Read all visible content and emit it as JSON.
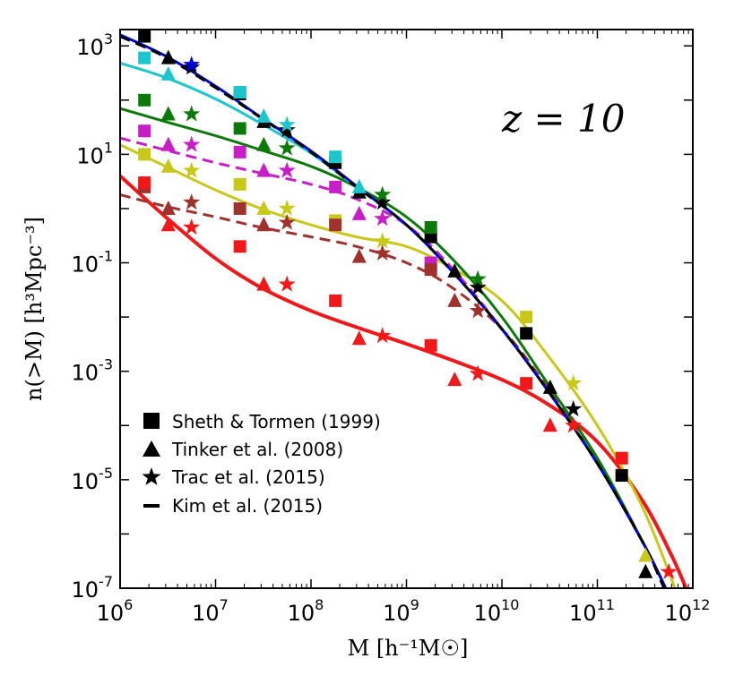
{
  "chart_data": {
    "type": "line",
    "title": "",
    "annotation": "z = 10",
    "xlabel": "M [h⁻¹M☉]",
    "ylabel": "n(>M) [h³Mpc⁻³]",
    "xscale": "log",
    "yscale": "log",
    "xlim": [
      1000000.0,
      1000000000000.0
    ],
    "ylim": [
      1e-07,
      2000
    ],
    "x_ticks": [
      {
        "value": 1000000.0,
        "base": "10",
        "exp": "6"
      },
      {
        "value": 10000000.0,
        "base": "10",
        "exp": "7"
      },
      {
        "value": 100000000.0,
        "base": "10",
        "exp": "8"
      },
      {
        "value": 1000000000.0,
        "base": "10",
        "exp": "9"
      },
      {
        "value": 10000000000.0,
        "base": "10",
        "exp": "10"
      },
      {
        "value": 100000000000.0,
        "base": "10",
        "exp": "11"
      },
      {
        "value": 1000000000000.0,
        "base": "10",
        "exp": "12"
      }
    ],
    "y_ticks": [
      {
        "value": 1e-07,
        "base": "10",
        "exp": "-7"
      },
      {
        "value": 1e-05,
        "base": "10",
        "exp": "-5"
      },
      {
        "value": 0.001,
        "base": "10",
        "exp": "-3"
      },
      {
        "value": 0.1,
        "base": "10",
        "exp": "-1"
      },
      {
        "value": 10,
        "base": "10",
        "exp": "1"
      },
      {
        "value": 1000,
        "base": "10",
        "exp": "3"
      }
    ],
    "legend": {
      "placement": "lower-left",
      "entries": [
        {
          "marker": "square",
          "label": "Sheth & Tormen (1999)"
        },
        {
          "marker": "triangle",
          "label": "Tinker et al. (2008)"
        },
        {
          "marker": "star",
          "label": "Trac et al. (2015)"
        },
        {
          "marker": "dash",
          "label": "Kim et al. (2015)"
        }
      ]
    },
    "curves": [
      {
        "name": "black",
        "color": "#000000",
        "dashed": true,
        "width": 3,
        "x": [
          1000000.0,
          3000000.0,
          10000000.0,
          30000000.0,
          100000000.0,
          300000000.0,
          1000000000.0,
          3000000000.0,
          10000000000.0,
          30000000000.0,
          100000000000.0,
          300000000000.0,
          500000000000.0
        ],
        "y": [
          1500,
          620,
          170,
          47,
          11,
          2.5,
          0.5,
          0.07,
          0.006,
          0.00045,
          2e-05,
          7e-07,
          1e-07
        ]
      },
      {
        "name": "blue",
        "color": "#0000dd",
        "dashed": false,
        "width": 3,
        "x": [
          1000000.0,
          3000000.0,
          10000000.0,
          30000000.0,
          100000000.0,
          300000000.0,
          1000000000.0,
          3000000000.0,
          10000000000.0,
          30000000000.0,
          100000000000.0,
          300000000000.0,
          520000000000.0
        ],
        "y": [
          1600,
          650,
          180,
          48,
          11.5,
          2.6,
          0.5,
          0.07,
          0.006,
          0.00045,
          2e-05,
          7e-07,
          1e-07
        ]
      },
      {
        "name": "cyan",
        "color": "#1cc6cc",
        "dashed": false,
        "width": 3,
        "x": [
          1000000.0,
          3000000.0,
          10000000.0,
          30000000.0,
          100000000.0,
          300000000.0,
          1000000000.0,
          3000000000.0,
          10000000000.0,
          30000000000.0,
          100000000000.0,
          300000000000.0,
          520000000000.0
        ],
        "y": [
          480,
          260,
          105,
          37,
          10.5,
          2.5,
          0.5,
          0.07,
          0.006,
          0.00045,
          2e-05,
          7e-07,
          1e-07
        ]
      },
      {
        "name": "green",
        "color": "#0b7a0b",
        "dashed": false,
        "width": 3,
        "x": [
          1000000.0,
          3000000.0,
          10000000.0,
          30000000.0,
          100000000.0,
          300000000.0,
          1000000000.0,
          3000000000.0,
          10000000000.0,
          30000000000.0,
          100000000000.0,
          300000000000.0,
          520000000000.0
        ],
        "y": [
          70,
          40,
          22,
          12,
          6,
          2.5,
          0.7,
          0.12,
          0.01,
          0.0006,
          2.5e-05,
          7e-07,
          1e-07
        ]
      },
      {
        "name": "magenta",
        "color": "#c81ec8",
        "dashed": true,
        "width": 3,
        "x": [
          1000000.0,
          3000000.0,
          10000000.0,
          30000000.0,
          100000000.0,
          300000000.0,
          1000000000.0,
          3000000000.0,
          10000000000.0,
          30000000000.0,
          100000000000.0,
          300000000000.0,
          520000000000.0
        ],
        "y": [
          20,
          12,
          7,
          4.5,
          2.8,
          1.5,
          0.5,
          0.08,
          0.006,
          0.00045,
          2e-05,
          7e-07,
          1e-07
        ]
      },
      {
        "name": "olive",
        "color": "#c8c81a",
        "dashed": false,
        "width": 3,
        "x": [
          1000000.0,
          3000000.0,
          10000000.0,
          30000000.0,
          100000000.0,
          300000000.0,
          1000000000.0,
          3000000000.0,
          10000000000.0,
          30000000000.0,
          100000000000.0,
          300000000000.0,
          650000000000.0
        ],
        "y": [
          15,
          6,
          2.2,
          1,
          0.5,
          0.3,
          0.2,
          0.08,
          0.02,
          0.002,
          0.0001,
          3e-06,
          1e-07
        ]
      },
      {
        "name": "brown",
        "color": "#a0322d",
        "dashed": true,
        "width": 3,
        "x": [
          1000000.0,
          3000000.0,
          10000000.0,
          30000000.0,
          100000000.0,
          300000000.0,
          1000000000.0,
          3000000000.0,
          10000000000.0,
          30000000000.0,
          100000000000.0,
          300000000000.0,
          520000000000.0
        ],
        "y": [
          1.8,
          1.1,
          0.7,
          0.45,
          0.3,
          0.2,
          0.1,
          0.035,
          0.006,
          0.0005,
          2e-05,
          7e-07,
          1e-07
        ]
      },
      {
        "name": "red",
        "color": "#f01818",
        "dashed": false,
        "width": 4,
        "x": [
          1000000.0,
          3000000.0,
          10000000.0,
          30000000.0,
          100000000.0,
          300000000.0,
          1000000000.0,
          3000000000.0,
          10000000000.0,
          30000000000.0,
          100000000000.0,
          300000000000.0,
          600000000000.0,
          850000000000.0
        ],
        "y": [
          4,
          0.7,
          0.12,
          0.035,
          0.013,
          0.0065,
          0.0032,
          0.0016,
          0.0007,
          0.00025,
          5e-05,
          4e-06,
          4e-07,
          1e-07
        ]
      }
    ],
    "points": [
      {
        "series": "black",
        "color": "#000000",
        "marker": "square",
        "x": [
          1800000.0,
          18000000.0,
          180000000.0,
          1800000000.0,
          18000000000.0,
          180000000000.0
        ],
        "y": [
          1500,
          130,
          7,
          0.3,
          0.005,
          1.2e-05
        ]
      },
      {
        "series": "black",
        "color": "#000000",
        "marker": "triangle",
        "x": [
          3200000.0,
          32000000.0,
          320000000.0,
          3200000000.0,
          32000000000.0,
          320000000000.0
        ],
        "y": [
          600,
          40,
          2,
          0.07,
          0.0005,
          2e-07
        ]
      },
      {
        "series": "black",
        "color": "#000000",
        "marker": "star",
        "x": [
          5600000.0,
          56000000.0,
          560000000.0,
          5600000000.0,
          56000000000.0
        ],
        "y": [
          400,
          28,
          1.3,
          0.035,
          0.0002
        ]
      },
      {
        "series": "blue",
        "color": "#0000dd",
        "marker": "star",
        "x": [
          5600000.0
        ],
        "y": [
          450
        ]
      },
      {
        "series": "cyan",
        "color": "#1cc6cc",
        "marker": "square",
        "x": [
          1800000.0,
          18000000.0,
          180000000.0
        ],
        "y": [
          600,
          140,
          9
        ]
      },
      {
        "series": "cyan",
        "color": "#1cc6cc",
        "marker": "triangle",
        "x": [
          3200000.0,
          32000000.0,
          320000000.0
        ],
        "y": [
          300,
          50,
          2.5
        ]
      },
      {
        "series": "cyan",
        "color": "#1cc6cc",
        "marker": "star",
        "x": [
          56000000.0
        ],
        "y": [
          35
        ]
      },
      {
        "series": "green",
        "color": "#0b7a0b",
        "marker": "square",
        "x": [
          1800000.0,
          18000000.0,
          1800000000.0
        ],
        "y": [
          100,
          30,
          0.45
        ]
      },
      {
        "series": "green",
        "color": "#0b7a0b",
        "marker": "triangle",
        "x": [
          3200000.0,
          32000000.0
        ],
        "y": [
          55,
          15
        ]
      },
      {
        "series": "green",
        "color": "#0b7a0b",
        "marker": "star",
        "x": [
          5600000.0,
          56000000.0,
          560000000.0,
          5600000000.0
        ],
        "y": [
          55,
          13,
          1.8,
          0.05
        ]
      },
      {
        "series": "magenta",
        "color": "#c81ec8",
        "marker": "square",
        "x": [
          1800000.0,
          18000000.0,
          180000000.0,
          1800000000.0
        ],
        "y": [
          27,
          11,
          2.5,
          0.1
        ]
      },
      {
        "series": "magenta",
        "color": "#c81ec8",
        "marker": "triangle",
        "x": [
          3200000.0,
          32000000.0,
          320000000.0
        ],
        "y": [
          15,
          5,
          0.8
        ]
      },
      {
        "series": "magenta",
        "color": "#c81ec8",
        "marker": "star",
        "x": [
          5600000.0,
          56000000.0,
          560000000.0
        ],
        "y": [
          15,
          5,
          0.65
        ]
      },
      {
        "series": "olive",
        "color": "#c8c81a",
        "marker": "square",
        "x": [
          1800000.0,
          18000000.0,
          180000000.0,
          18000000000.0,
          180000000000.0
        ],
        "y": [
          10,
          2.8,
          0.6,
          0.01,
          2.5e-05
        ]
      },
      {
        "series": "olive",
        "color": "#c8c81a",
        "marker": "triangle",
        "x": [
          3200000.0,
          32000000.0,
          320000000000.0
        ],
        "y": [
          6,
          1,
          4e-07
        ]
      },
      {
        "series": "olive",
        "color": "#c8c81a",
        "marker": "star",
        "x": [
          5600000.0,
          56000000.0,
          560000000.0,
          56000000000.0
        ],
        "y": [
          5,
          1,
          0.25,
          0.0006
        ]
      },
      {
        "series": "brown",
        "color": "#a0322d",
        "marker": "square",
        "x": [
          1800000.0,
          18000000.0,
          180000000.0,
          1800000000.0
        ],
        "y": [
          2.5,
          1,
          0.5,
          0.075
        ]
      },
      {
        "series": "brown",
        "color": "#a0322d",
        "marker": "triangle",
        "x": [
          3200000.0,
          32000000.0,
          320000000.0,
          3200000000.0
        ],
        "y": [
          1,
          0.5,
          0.13,
          0.02
        ]
      },
      {
        "series": "brown",
        "color": "#a0322d",
        "marker": "star",
        "x": [
          5600000.0,
          56000000.0,
          560000000.0,
          5600000000.0
        ],
        "y": [
          1.3,
          0.55,
          0.15,
          0.013
        ]
      },
      {
        "series": "red",
        "color": "#f01818",
        "marker": "square",
        "x": [
          1800000.0,
          18000000.0,
          180000000.0,
          1800000000.0,
          18000000000.0,
          180000000000.0
        ],
        "y": [
          3,
          0.2,
          0.02,
          0.003,
          0.0006,
          2.5e-05
        ]
      },
      {
        "series": "red",
        "color": "#f01818",
        "marker": "triangle",
        "x": [
          3200000.0,
          32000000.0,
          320000000.0,
          3200000000.0,
          32000000000.0
        ],
        "y": [
          0.5,
          0.04,
          0.004,
          0.0007,
          0.0001
        ]
      },
      {
        "series": "red",
        "color": "#f01818",
        "marker": "star",
        "x": [
          5600000.0,
          56000000.0,
          560000000.0,
          5600000000.0,
          56000000000.0,
          560000000000.0
        ],
        "y": [
          0.45,
          0.04,
          0.0045,
          0.0009,
          0.0001,
          2e-07
        ]
      }
    ]
  }
}
